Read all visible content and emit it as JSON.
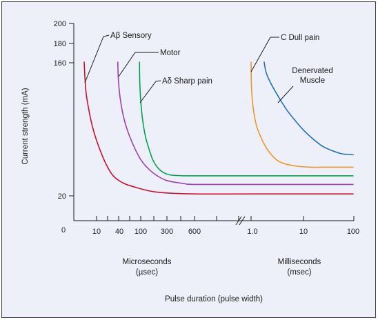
{
  "chart_data": {
    "type": "line",
    "title": "",
    "ylabel": "Current strength (mA)",
    "xlabel": "Pulse duration (pulse width)",
    "y_ticks": [
      "200",
      "180",
      "160",
      "20",
      "0"
    ],
    "x_ticks_us": [
      "10",
      "40",
      "100",
      "300",
      "600"
    ],
    "x_ticks_ms": [
      "1.0",
      "10",
      "100"
    ],
    "x_groups": [
      {
        "name": "Microseconds",
        "unit": "(µsec)"
      },
      {
        "name": "Milliseconds",
        "unit": "(msec)"
      }
    ],
    "grid": false,
    "series": [
      {
        "name": "Aβ Sensory",
        "color": "#c8102e",
        "points": [
          [
            5,
            160
          ],
          [
            5.5,
            130
          ],
          [
            6.5,
            110
          ],
          [
            8,
            92
          ],
          [
            10,
            78
          ],
          [
            14,
            63
          ],
          [
            20,
            50
          ],
          [
            30,
            40
          ],
          [
            50,
            33
          ],
          [
            80,
            29
          ],
          [
            150,
            25
          ],
          [
            300,
            23
          ],
          [
            600,
            22
          ],
          [
            1000,
            22
          ],
          [
            100000,
            22
          ]
        ]
      },
      {
        "name": "Motor",
        "color": "#9b3fb0",
        "points": [
          [
            38,
            160
          ],
          [
            39,
            145
          ],
          [
            42,
            125
          ],
          [
            48,
            105
          ],
          [
            58,
            88
          ],
          [
            75,
            72
          ],
          [
            100,
            58
          ],
          [
            140,
            48
          ],
          [
            200,
            41
          ],
          [
            300,
            36
          ],
          [
            450,
            33
          ],
          [
            600,
            32
          ],
          [
            1000,
            32
          ],
          [
            100000,
            32
          ]
        ]
      },
      {
        "name": "Aδ Sharp pain",
        "color": "#00a04b",
        "points": [
          [
            95,
            160
          ],
          [
            96,
            140
          ],
          [
            100,
            120
          ],
          [
            108,
            100
          ],
          [
            122,
            82
          ],
          [
            140,
            70
          ],
          [
            165,
            58
          ],
          [
            200,
            50
          ],
          [
            250,
            45
          ],
          [
            320,
            42
          ],
          [
            450,
            41
          ],
          [
            600,
            41
          ],
          [
            1000,
            41
          ],
          [
            100000,
            41
          ]
        ]
      },
      {
        "name": "C Dull pain",
        "color": "#f0932b",
        "points": [
          [
            1000,
            160
          ],
          [
            1010,
            140
          ],
          [
            1050,
            122
          ],
          [
            1150,
            105
          ],
          [
            1300,
            92
          ],
          [
            1600,
            80
          ],
          [
            2000,
            70
          ],
          [
            2600,
            62
          ],
          [
            3500,
            56
          ],
          [
            5000,
            53
          ],
          [
            8000,
            51
          ],
          [
            15000,
            50
          ],
          [
            30000,
            50
          ],
          [
            100000,
            50
          ]
        ]
      },
      {
        "name": "Denervated Muscle",
        "color": "#1f6fbf",
        "points": [
          [
            1800,
            160
          ],
          [
            2000,
            148
          ],
          [
            2600,
            135
          ],
          [
            3500,
            123
          ],
          [
            5000,
            110
          ],
          [
            7500,
            98
          ],
          [
            11000,
            88
          ],
          [
            16000,
            80
          ],
          [
            25000,
            72
          ],
          [
            40000,
            67
          ],
          [
            60000,
            64
          ],
          [
            100000,
            63
          ]
        ]
      }
    ]
  }
}
